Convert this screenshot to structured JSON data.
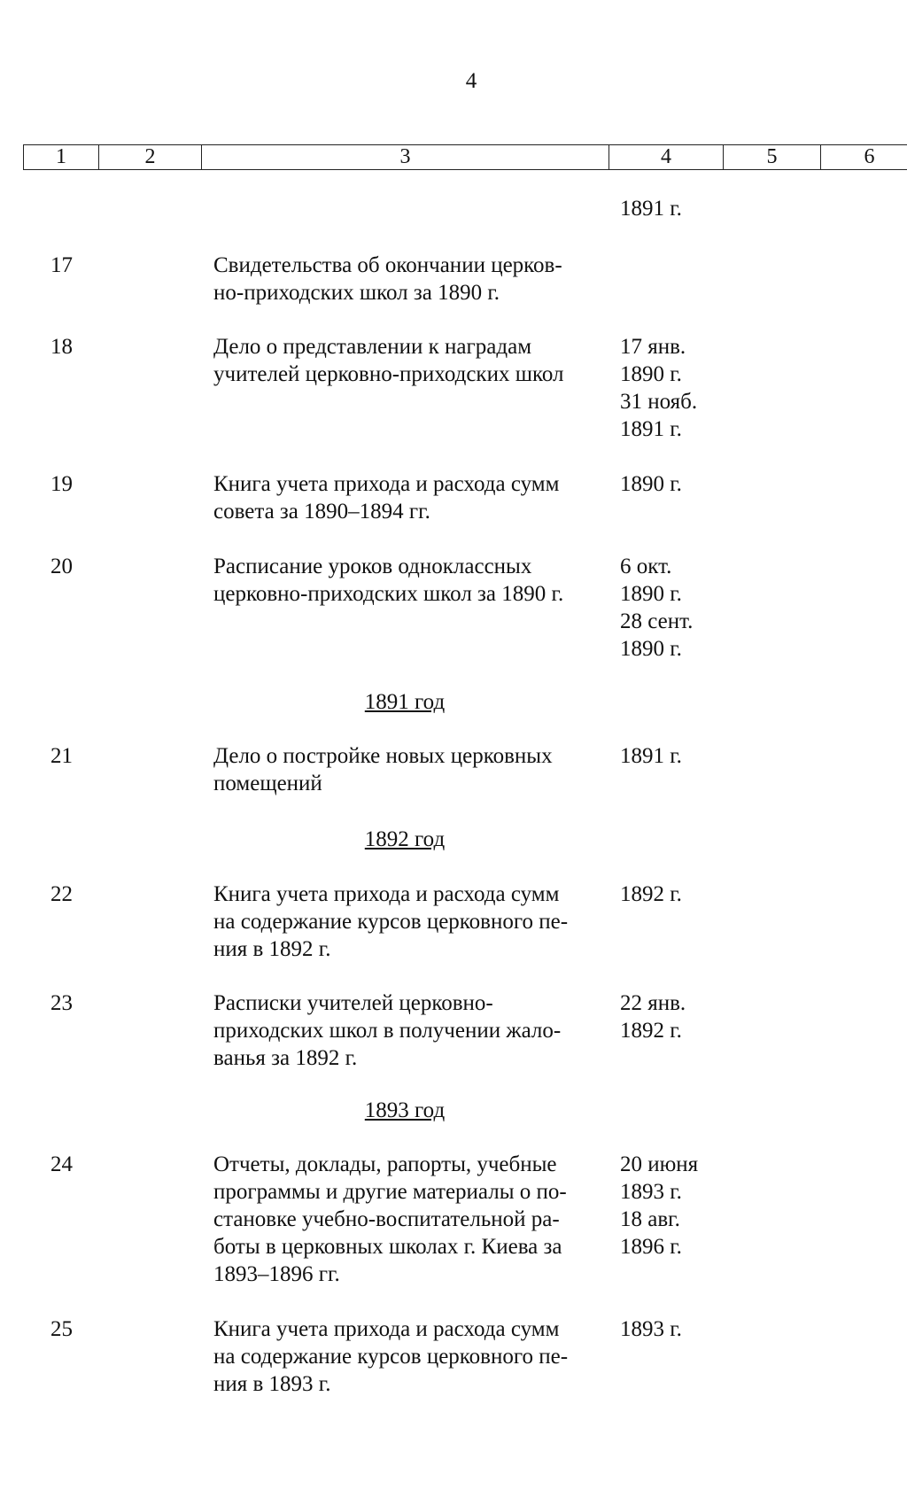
{
  "page_number": "4",
  "header_columns": [
    "1",
    "2",
    "3",
    "4",
    "5",
    "6"
  ],
  "continuation_date": "1891 г.",
  "entries": [
    {
      "num": "17",
      "text": "Свидетельства об окончании церков-\nно-приходских школ за 1890 г.",
      "date": ""
    },
    {
      "num": "18",
      "text": "Дело о представлении к наградам\nучителей церковно-приходских школ",
      "date": "17 янв.\n1890 г.\n31 нояб.\n1891 г."
    },
    {
      "num": "19",
      "text": "Книга учета прихода и расхода сумм\nсовета за 1890–1894 гг.",
      "date": "1890 г."
    },
    {
      "num": "20",
      "text": "Расписание уроков одноклассных\nцерковно-приходских школ за 1890 г.",
      "date": "6 окт.\n1890 г.\n28 сент.\n1890 г."
    },
    {
      "num": "21",
      "text": "Дело о постройке новых церковных\nпомещений",
      "date": "1891 г."
    },
    {
      "num": "22",
      "text": "Книга учета прихода и расхода сумм\nна содержание курсов церковного пе-\nния в 1892 г.",
      "date": "1892 г."
    },
    {
      "num": "23",
      "text": "Расписки учителей церковно-\nприходских школ в получении жало-\nванья за 1892 г.",
      "date": "22 янв.\n1892 г."
    },
    {
      "num": "24",
      "text": "Отчеты, доклады, рапорты, учебные\nпрограммы и другие материалы о по-\nстановке учебно-воспитательной ра-\nботы в церковных школах г. Киева за\n1893–1896 гг.",
      "date": "20 июня\n1893 г.\n18 авг.\n1896 г."
    },
    {
      "num": "25",
      "text": "Книга учета прихода и расхода сумм\nна содержание курсов церковного пе-\nния в 1893 г.",
      "date": "1893 г."
    }
  ],
  "year_headings": [
    "1891 год",
    "1892 год",
    "1893 год"
  ]
}
